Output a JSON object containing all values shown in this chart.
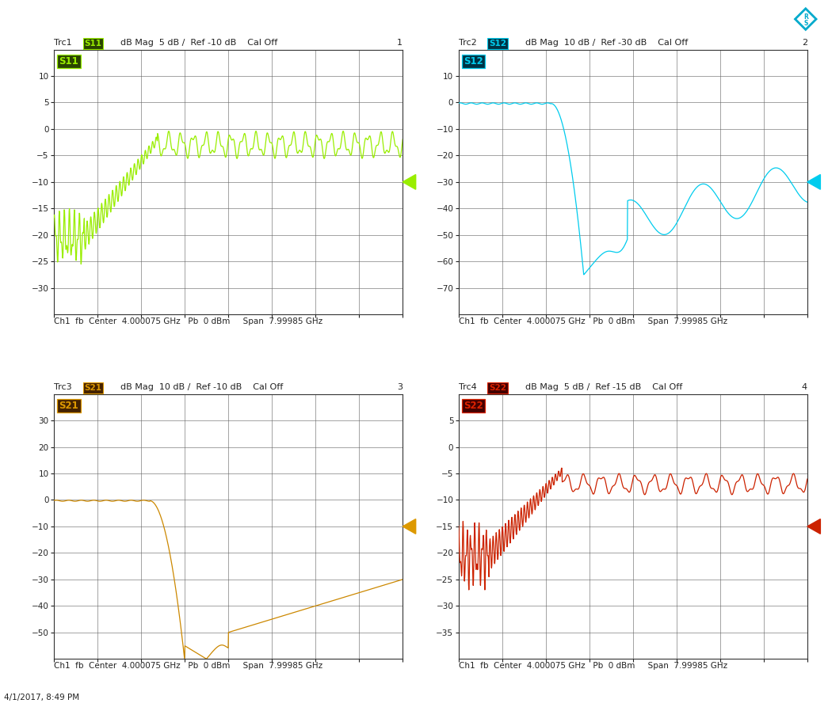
{
  "bg_color": "#ffffff",
  "plot_bg_color": "#ffffff",
  "grid_color": "#666666",
  "panels": [
    {
      "trc": "Trc1",
      "param": "S11",
      "panel_num": "1",
      "info": "dB Mag  5 dB /  Ref -10 dB    Cal Off",
      "ymin": -35,
      "ymax": 15,
      "yticks": [
        10,
        5,
        0,
        -5,
        -10,
        -15,
        -20,
        -25,
        -30
      ],
      "ref_level": -10,
      "marker_val": -10,
      "line_color": "#99ee00",
      "label_color": "#99ee00",
      "label_bg": "#2a4400",
      "marker_color": "#99ee00",
      "footer": "Ch1  fb  Center  4.000075 GHz   Pb  0 dBm     Span  7.99985 GHz"
    },
    {
      "trc": "Trc2",
      "param": "S12",
      "panel_num": "2",
      "info": "dB Mag  10 dB /  Ref -30 dB    Cal Off",
      "ymin": -80,
      "ymax": 20,
      "yticks": [
        10,
        0,
        -10,
        -20,
        -30,
        -40,
        -50,
        -60,
        -70
      ],
      "ref_level": -30,
      "marker_val": -30,
      "line_color": "#00ccee",
      "label_color": "#00ccee",
      "label_bg": "#003344",
      "marker_color": "#00ccee",
      "footer": "Ch1  fb  Center  4.000075 GHz   Pb  0 dBm     Span  7.99985 GHz"
    },
    {
      "trc": "Trc3",
      "param": "S21",
      "panel_num": "3",
      "info": "dB Mag  10 dB /  Ref -10 dB    Cal Off",
      "ymin": -60,
      "ymax": 40,
      "yticks": [
        30,
        20,
        10,
        0,
        -10,
        -20,
        -30,
        -40,
        -50
      ],
      "ref_level": -10,
      "marker_val": -10,
      "line_color": "#cc8800",
      "label_color": "#dd9900",
      "label_bg": "#442200",
      "marker_color": "#dd9900",
      "footer": "Ch1  fb  Center  4.000075 GHz   Pb  0 dBm     Span  7.99985 GHz"
    },
    {
      "trc": "Trc4",
      "param": "S22",
      "panel_num": "4",
      "info": "dB Mag  5 dB /  Ref -15 dB    Cal Off",
      "ymin": -40,
      "ymax": 10,
      "yticks": [
        5,
        0,
        -5,
        -10,
        -15,
        -20,
        -25,
        -30,
        -35
      ],
      "ref_level": -15,
      "marker_val": -15,
      "line_color": "#cc2200",
      "label_color": "#dd2200",
      "label_bg": "#440000",
      "marker_color": "#cc2200",
      "footer": "Ch1  fb  Center  4.000075 GHz   Pb  0 dBm     Span  7.99985 GHz"
    }
  ],
  "freq_min": 0.005,
  "freq_max": 8.0,
  "cutoff_freq": 2.5,
  "num_points": 1200,
  "footer_date": "4/1/2017, 8:49 PM"
}
